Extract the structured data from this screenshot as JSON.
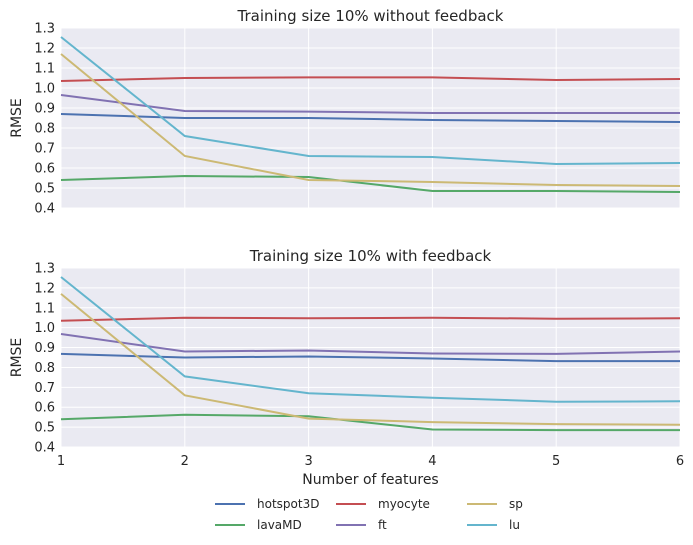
{
  "chart_data": [
    {
      "type": "line",
      "title": "Training size 10% without feedback",
      "xlabel": "",
      "ylabel": "RMSE",
      "xlim": [
        1,
        6
      ],
      "ylim": [
        0.4,
        1.3
      ],
      "xticks": [
        "1",
        "2",
        "3",
        "4",
        "5",
        "6"
      ],
      "yticks": [
        "0.4",
        "0.5",
        "0.6",
        "0.7",
        "0.8",
        "0.9",
        "1.0",
        "1.1",
        "1.2",
        "1.3"
      ],
      "show_xtick_labels": false,
      "grid": true,
      "x": [
        1,
        2,
        3,
        4,
        5,
        6
      ],
      "series": [
        {
          "name": "hotspot3D",
          "color": "#4c72b0",
          "values": [
            0.87,
            0.85,
            0.85,
            0.84,
            0.835,
            0.83
          ]
        },
        {
          "name": "lavaMD",
          "color": "#55a868",
          "values": [
            0.54,
            0.56,
            0.555,
            0.485,
            0.485,
            0.48
          ]
        },
        {
          "name": "myocyte",
          "color": "#c44e52",
          "values": [
            1.035,
            1.05,
            1.053,
            1.053,
            1.04,
            1.045
          ]
        },
        {
          "name": "ft",
          "color": "#8172b2",
          "values": [
            0.965,
            0.885,
            0.882,
            0.875,
            0.875,
            0.875
          ]
        },
        {
          "name": "sp",
          "color": "#ccb974",
          "values": [
            1.17,
            0.66,
            0.54,
            0.53,
            0.515,
            0.51
          ]
        },
        {
          "name": "lu",
          "color": "#64b5cd",
          "values": [
            1.255,
            0.76,
            0.66,
            0.655,
            0.62,
            0.625
          ]
        }
      ]
    },
    {
      "type": "line",
      "title": "Training size 10% with feedback",
      "xlabel": "Number of features",
      "ylabel": "RMSE",
      "xlim": [
        1,
        6
      ],
      "ylim": [
        0.4,
        1.3
      ],
      "xticks": [
        "1",
        "2",
        "3",
        "4",
        "5",
        "6"
      ],
      "yticks": [
        "0.4",
        "0.5",
        "0.6",
        "0.7",
        "0.8",
        "0.9",
        "1.0",
        "1.1",
        "1.2",
        "1.3"
      ],
      "show_xtick_labels": true,
      "grid": true,
      "x": [
        1,
        2,
        3,
        4,
        5,
        6
      ],
      "series": [
        {
          "name": "hotspot3D",
          "color": "#4c72b0",
          "values": [
            0.868,
            0.85,
            0.855,
            0.845,
            0.832,
            0.832
          ]
        },
        {
          "name": "lavaMD",
          "color": "#55a868",
          "values": [
            0.54,
            0.562,
            0.555,
            0.488,
            0.485,
            0.485
          ]
        },
        {
          "name": "myocyte",
          "color": "#c44e52",
          "values": [
            1.035,
            1.05,
            1.047,
            1.05,
            1.045,
            1.047
          ]
        },
        {
          "name": "ft",
          "color": "#8172b2",
          "values": [
            0.968,
            0.88,
            0.885,
            0.87,
            0.868,
            0.88
          ]
        },
        {
          "name": "sp",
          "color": "#ccb974",
          "values": [
            1.17,
            0.66,
            0.543,
            0.525,
            0.515,
            0.512
          ]
        },
        {
          "name": "lu",
          "color": "#64b5cd",
          "values": [
            1.255,
            0.755,
            0.67,
            0.648,
            0.628,
            0.63
          ]
        }
      ]
    }
  ],
  "legend": {
    "placement": "bottom-center",
    "entries": [
      {
        "label": "hotspot3D",
        "color": "#4c72b0"
      },
      {
        "label": "myocyte",
        "color": "#c44e52"
      },
      {
        "label": "sp",
        "color": "#ccb974"
      },
      {
        "label": "lavaMD",
        "color": "#55a868"
      },
      {
        "label": "ft",
        "color": "#8172b2"
      },
      {
        "label": "lu",
        "color": "#64b5cd"
      }
    ]
  }
}
